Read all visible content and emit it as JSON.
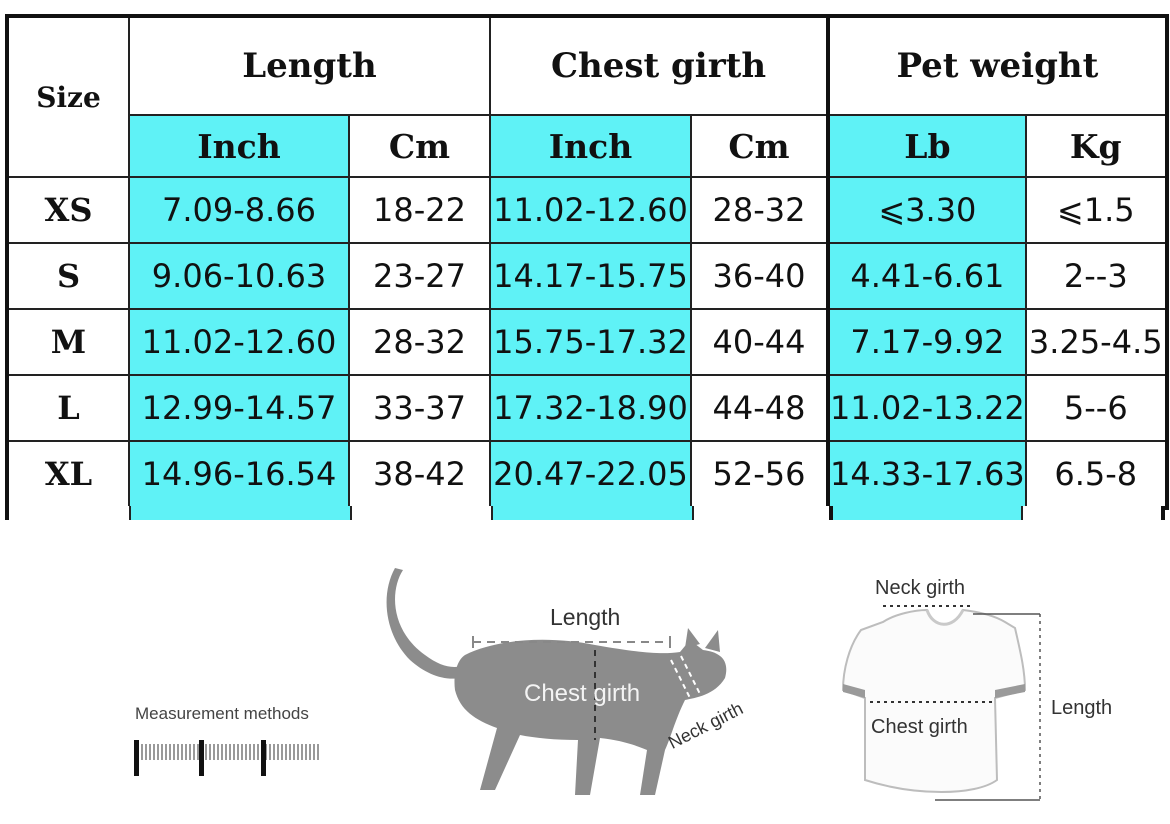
{
  "table": {
    "size_header": "Size",
    "groups": [
      {
        "label": "Length",
        "units": [
          "Inch",
          "Cm"
        ]
      },
      {
        "label": "Chest girth",
        "units": [
          "Inch",
          "Cm"
        ]
      },
      {
        "label": "Pet weight",
        "units": [
          "Lb",
          "Kg"
        ]
      }
    ],
    "rows": [
      {
        "size": "XS",
        "values": [
          "7.09-8.66",
          "18-22",
          "11.02-12.60",
          "28-32",
          "⩽3.30",
          "⩽1.5"
        ]
      },
      {
        "size": "S",
        "values": [
          "9.06-10.63",
          "23-27",
          "14.17-15.75",
          "36-40",
          "4.41-6.61",
          "2--3"
        ]
      },
      {
        "size": "M",
        "values": [
          "11.02-12.60",
          "28-32",
          "15.75-17.32",
          "40-44",
          "7.17-9.92",
          "3.25-4.5"
        ]
      },
      {
        "size": "L",
        "values": [
          "12.99-14.57",
          "33-37",
          "17.32-18.90",
          "44-48",
          "11.02-13.22",
          "5--6"
        ]
      },
      {
        "size": "XL",
        "values": [
          "14.96-16.54",
          "38-42",
          "20.47-22.05",
          "52-56",
          "14.33-17.63",
          "6.5-8"
        ]
      }
    ],
    "colors": {
      "highlight": "#5ff2f6",
      "border": "#111111"
    }
  },
  "illustration": {
    "measurement_methods": "Measurement methods",
    "cat": {
      "length": "Length",
      "chest_girth": "Chest girth",
      "neck_girth": "Neck girth"
    },
    "shirt": {
      "neck_girth": "Neck girth",
      "chest_girth": "Chest girth",
      "length": "Length"
    }
  }
}
